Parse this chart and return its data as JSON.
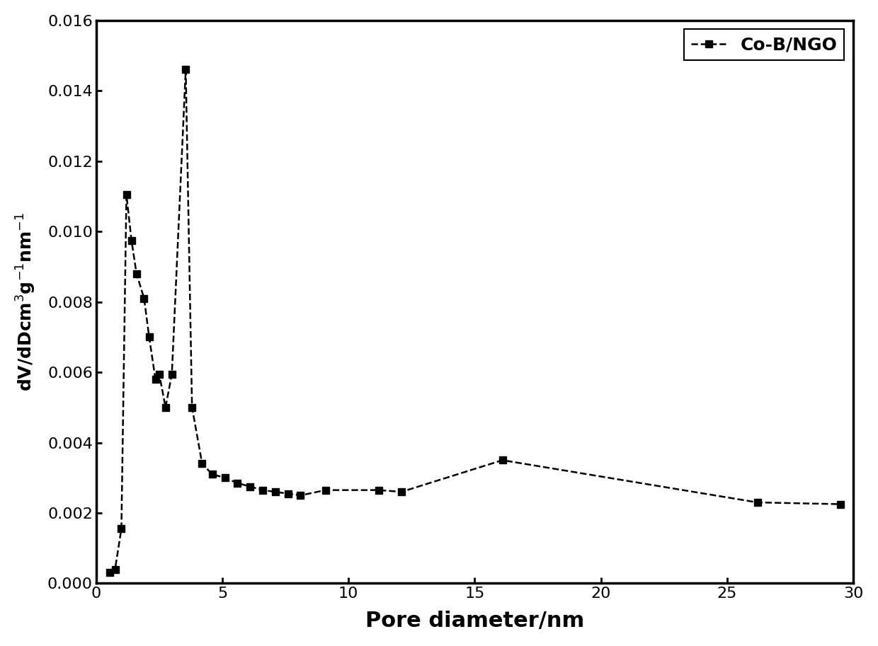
{
  "x": [
    0.55,
    0.75,
    1.0,
    1.2,
    1.4,
    1.6,
    1.9,
    2.1,
    2.35,
    2.5,
    2.75,
    3.0,
    3.55,
    3.8,
    4.2,
    4.6,
    5.1,
    5.6,
    6.1,
    6.6,
    7.1,
    7.6,
    8.1,
    9.1,
    11.2,
    12.1,
    16.1,
    26.2,
    29.5
  ],
  "y": [
    0.0003,
    0.0004,
    0.00155,
    0.01105,
    0.00975,
    0.0088,
    0.0081,
    0.007,
    0.0058,
    0.00595,
    0.005,
    0.00595,
    0.0146,
    0.005,
    0.0034,
    0.0031,
    0.003,
    0.00285,
    0.00275,
    0.00265,
    0.0026,
    0.00255,
    0.0025,
    0.00265,
    0.00265,
    0.0026,
    0.0035,
    0.0023,
    0.00225
  ],
  "xlabel": "Pore diameter/nm",
  "legend_label": "Co-B/NGO",
  "xlim": [
    0,
    30
  ],
  "ylim": [
    0.0,
    0.016
  ],
  "yticks": [
    0.0,
    0.002,
    0.004,
    0.006,
    0.008,
    0.01,
    0.012,
    0.014,
    0.016
  ],
  "xticks": [
    0,
    5,
    10,
    15,
    20,
    25,
    30
  ],
  "line_color": "#000000",
  "marker": "s",
  "markersize": 7,
  "linewidth": 1.8,
  "linestyle": "--",
  "background_color": "#ffffff",
  "xlabel_fontsize": 22,
  "ylabel_fontsize": 18,
  "tick_fontsize": 16,
  "legend_fontsize": 18
}
